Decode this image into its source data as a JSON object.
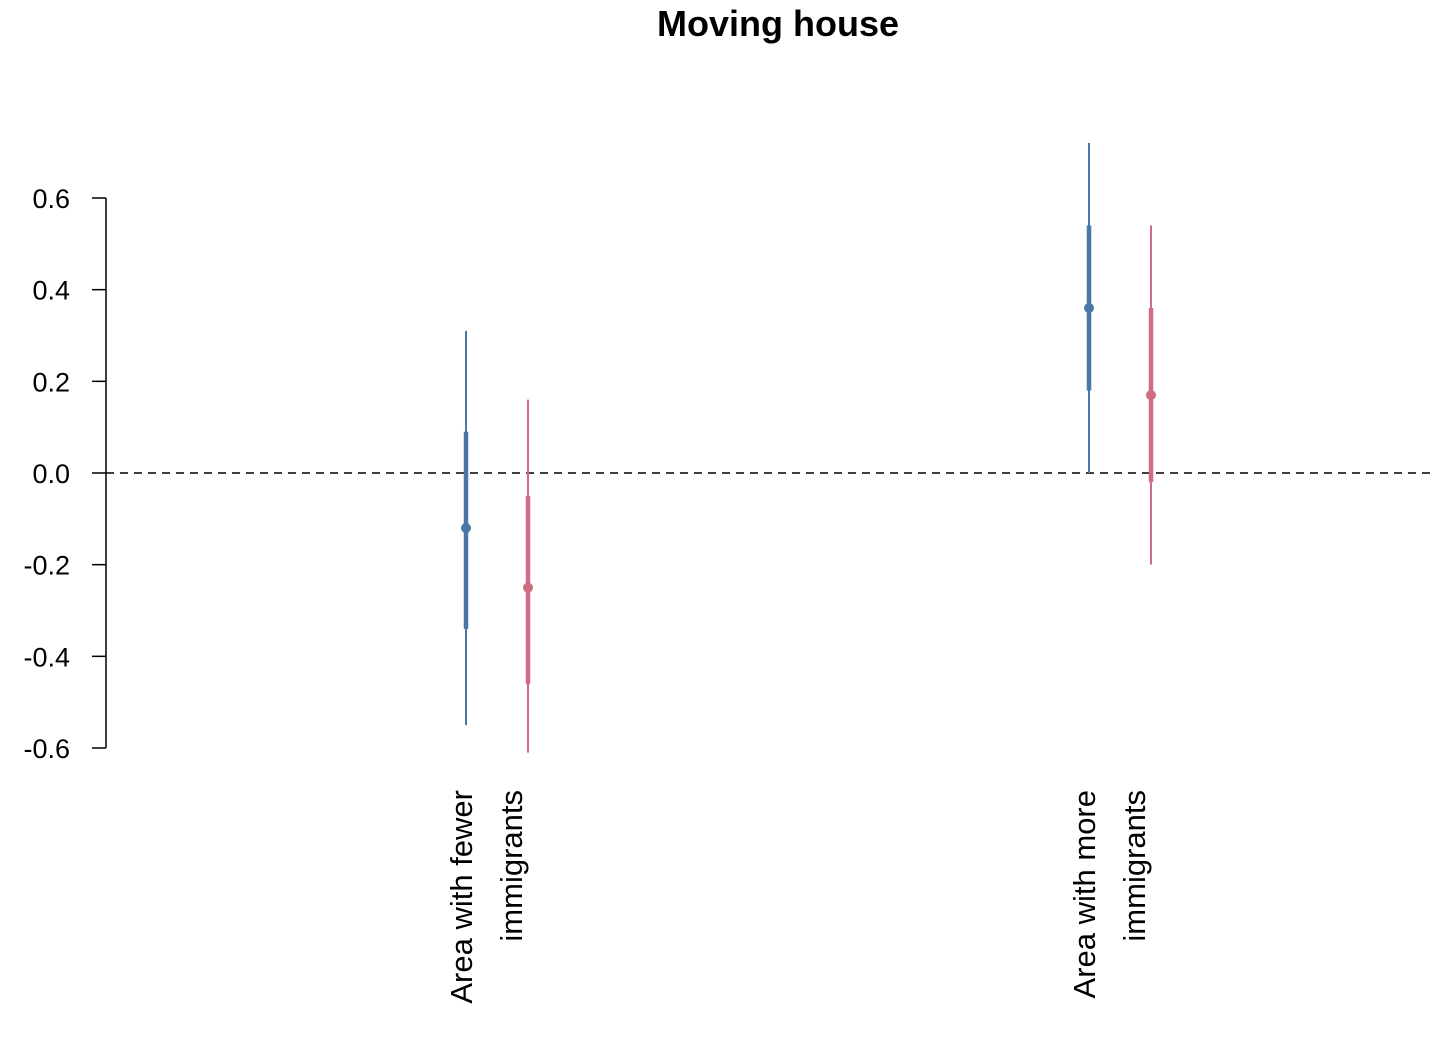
{
  "chart_data": {
    "type": "errorbar",
    "title": "Moving house",
    "xlabel": "",
    "ylabel": "",
    "ylim": [
      -0.6,
      0.6
    ],
    "yticks": [
      "0.6",
      "0.4",
      "0.2",
      "0.0",
      "-0.2",
      "-0.4",
      "-0.6"
    ],
    "categories": [
      {
        "lines": [
          "Area with fewer",
          "immigrants"
        ]
      },
      {
        "lines": [
          "Area with more",
          "immigrants"
        ]
      }
    ],
    "reference_line": 0.0,
    "series": [
      {
        "color": "#4a76a8",
        "points": [
          {
            "estimate": -0.12,
            "inner": [
              -0.34,
              0.09
            ],
            "outer": [
              -0.55,
              0.31
            ]
          },
          {
            "estimate": 0.36,
            "inner": [
              0.18,
              0.54
            ],
            "outer": [
              0.0,
              0.72
            ]
          }
        ]
      },
      {
        "color": "#d06c84",
        "points": [
          {
            "estimate": -0.25,
            "inner": [
              -0.46,
              -0.05
            ],
            "outer": [
              -0.61,
              0.16
            ]
          },
          {
            "estimate": 0.17,
            "inner": [
              -0.02,
              0.36
            ],
            "outer": [
              -0.2,
              0.54
            ]
          }
        ]
      }
    ]
  }
}
